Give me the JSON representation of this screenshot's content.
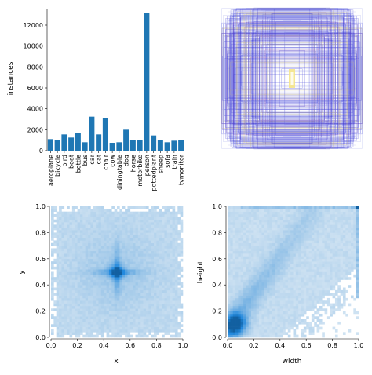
{
  "chart_data": [
    {
      "type": "bar",
      "ylabel": "instances",
      "categories": [
        "aeroplane",
        "bicycle",
        "bird",
        "boat",
        "bottle",
        "bus",
        "car",
        "cat",
        "chair",
        "cow",
        "diningtable",
        "dog",
        "horse",
        "motorbike",
        "person",
        "pottedplant",
        "sheep",
        "sofa",
        "train",
        "tvmonitor"
      ],
      "values": [
        1100,
        1000,
        1550,
        1250,
        1700,
        800,
        3250,
        1550,
        3100,
        750,
        800,
        2000,
        1050,
        1000,
        13200,
        1450,
        1050,
        800,
        950,
        1050
      ],
      "ylim": [
        0,
        13500
      ],
      "yticks": [
        "0",
        "2000",
        "4000",
        "6000",
        "8000",
        "10000",
        "12000"
      ],
      "color": "#1f77b4"
    },
    {
      "type": "heatmap",
      "description_kind": "box-overlay",
      "colors": [
        "#3b3bd6",
        "#9aa0e8",
        "#f5e58a",
        "#c8b46a",
        "#7a3fb0"
      ]
    },
    {
      "type": "heatmap",
      "xlabel": "x",
      "ylabel": "y",
      "xlim": [
        0,
        1
      ],
      "ylim": [
        0,
        1
      ],
      "xticks": [
        "0.0",
        "0.2",
        "0.4",
        "0.6",
        "0.8",
        "1.0"
      ],
      "yticks": [
        "0.0",
        "0.2",
        "0.4",
        "0.6",
        "0.8",
        "1.0"
      ],
      "center": [
        0.5,
        0.5
      ],
      "color": "#1f77b4"
    },
    {
      "type": "heatmap",
      "xlabel": "width",
      "ylabel": "height",
      "xlim": [
        0,
        1
      ],
      "ylim": [
        0,
        1
      ],
      "xticks": [
        "0.0",
        "0.2",
        "0.4",
        "0.6",
        "0.8",
        "1.0"
      ],
      "yticks": [
        "0.0",
        "0.2",
        "0.4",
        "0.6",
        "0.8",
        "1.0"
      ],
      "mode": [
        0.06,
        0.1
      ],
      "color": "#1f77b4"
    }
  ]
}
